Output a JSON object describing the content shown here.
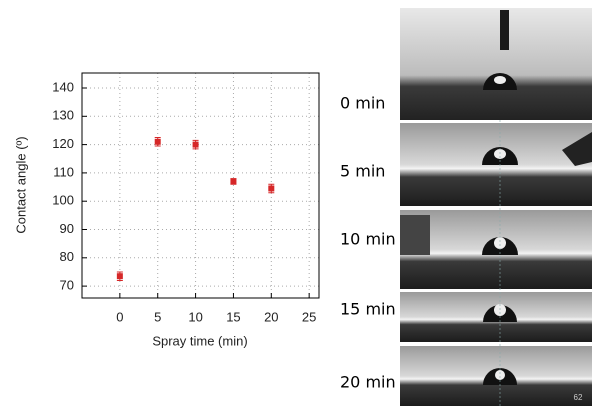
{
  "chart_data": {
    "type": "scatter",
    "xlabel": "Spray time (min)",
    "ylabel": "Contact angle (º)",
    "x": [
      0,
      5,
      10,
      15,
      20
    ],
    "values": [
      73.5,
      121,
      120,
      107,
      104.5
    ],
    "errors": [
      1.5,
      1.5,
      1.5,
      1,
      1.5
    ],
    "color": "#d62728",
    "xlim": [
      -5,
      26.3
    ],
    "ylim": [
      65.8,
      145.3
    ],
    "xticks": [
      0,
      5,
      10,
      15,
      20,
      25
    ],
    "yticks": [
      70,
      80,
      90,
      100,
      110,
      120,
      130,
      140
    ],
    "grid": true
  },
  "panels": [
    {
      "label": "0 min"
    },
    {
      "label": "5 min"
    },
    {
      "label": "10 min"
    },
    {
      "label": "15 min"
    },
    {
      "label": "20 min"
    }
  ],
  "page_number": "62"
}
